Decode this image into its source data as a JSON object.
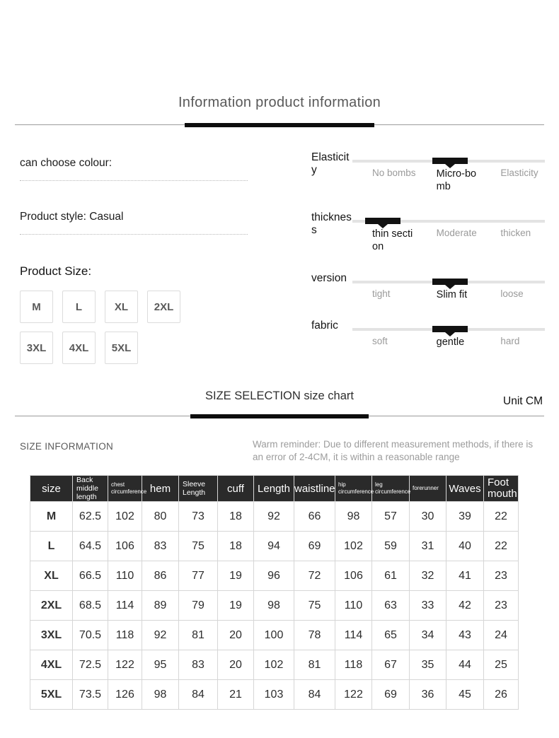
{
  "title": "Information product information",
  "product": {
    "colour_label": "can choose colour:",
    "style_label": "Product style: Casual",
    "size_label": "Product Size:",
    "sizes": [
      "M",
      "L",
      "XL",
      "2XL",
      "3XL",
      "4XL",
      "5XL"
    ]
  },
  "attributes": [
    {
      "label": "Elasticity",
      "options": [
        "No bombs",
        "Micro-bomb",
        "Elasticity"
      ],
      "selected": "Micro-bomb"
    },
    {
      "label": "thickness",
      "options": [
        "thin section",
        "Moderate",
        "thicken"
      ],
      "selected": "thin section"
    },
    {
      "label": "version",
      "options": [
        "tight",
        "Slim fit",
        "loose"
      ],
      "selected": "Slim fit"
    },
    {
      "label": "fabric",
      "options": [
        "soft",
        "gentle",
        "hard"
      ],
      "selected": "gentle"
    }
  ],
  "size_chart": {
    "heading": "SIZE SELECTION size chart",
    "unit": "Unit CM",
    "section_label": "SIZE INFORMATION",
    "reminder": "Warm reminder: Due to different measurement methods, if there is an error of 2-4CM, it is within a reasonable range"
  },
  "table": {
    "columns": [
      "size",
      "Back middle length",
      "chest circumference",
      "hem",
      "Sleeve Length",
      "cuff",
      "Length",
      "waistline",
      "hip circumference",
      "leg circumference",
      "forerunner",
      "Waves",
      "Foot mouth"
    ],
    "rows": [
      {
        "size": "M",
        "values": [
          "62.5",
          "102",
          "80",
          "73",
          "18",
          "92",
          "66",
          "98",
          "57",
          "30",
          "39",
          "22"
        ]
      },
      {
        "size": "L",
        "values": [
          "64.5",
          "106",
          "83",
          "75",
          "18",
          "94",
          "69",
          "102",
          "59",
          "31",
          "40",
          "22"
        ]
      },
      {
        "size": "XL",
        "values": [
          "66.5",
          "110",
          "86",
          "77",
          "19",
          "96",
          "72",
          "106",
          "61",
          "32",
          "41",
          "23"
        ]
      },
      {
        "size": "2XL",
        "values": [
          "68.5",
          "114",
          "89",
          "79",
          "19",
          "98",
          "75",
          "110",
          "63",
          "33",
          "42",
          "23"
        ]
      },
      {
        "size": "3XL",
        "values": [
          "70.5",
          "118",
          "92",
          "81",
          "20",
          "100",
          "78",
          "114",
          "65",
          "34",
          "43",
          "24"
        ]
      },
      {
        "size": "4XL",
        "values": [
          "72.5",
          "122",
          "95",
          "83",
          "20",
          "102",
          "81",
          "118",
          "67",
          "35",
          "44",
          "25"
        ]
      },
      {
        "size": "5XL",
        "values": [
          "73.5",
          "126",
          "98",
          "84",
          "21",
          "103",
          "84",
          "122",
          "69",
          "36",
          "45",
          "26"
        ]
      }
    ]
  },
  "colors": {
    "accent_bar": "#0d0d0d",
    "table_header_bg": "#2a2a2a",
    "slider_track": "#e3e3e3",
    "slider_marker": "#121212",
    "muted_text": "#9a9a9a"
  }
}
